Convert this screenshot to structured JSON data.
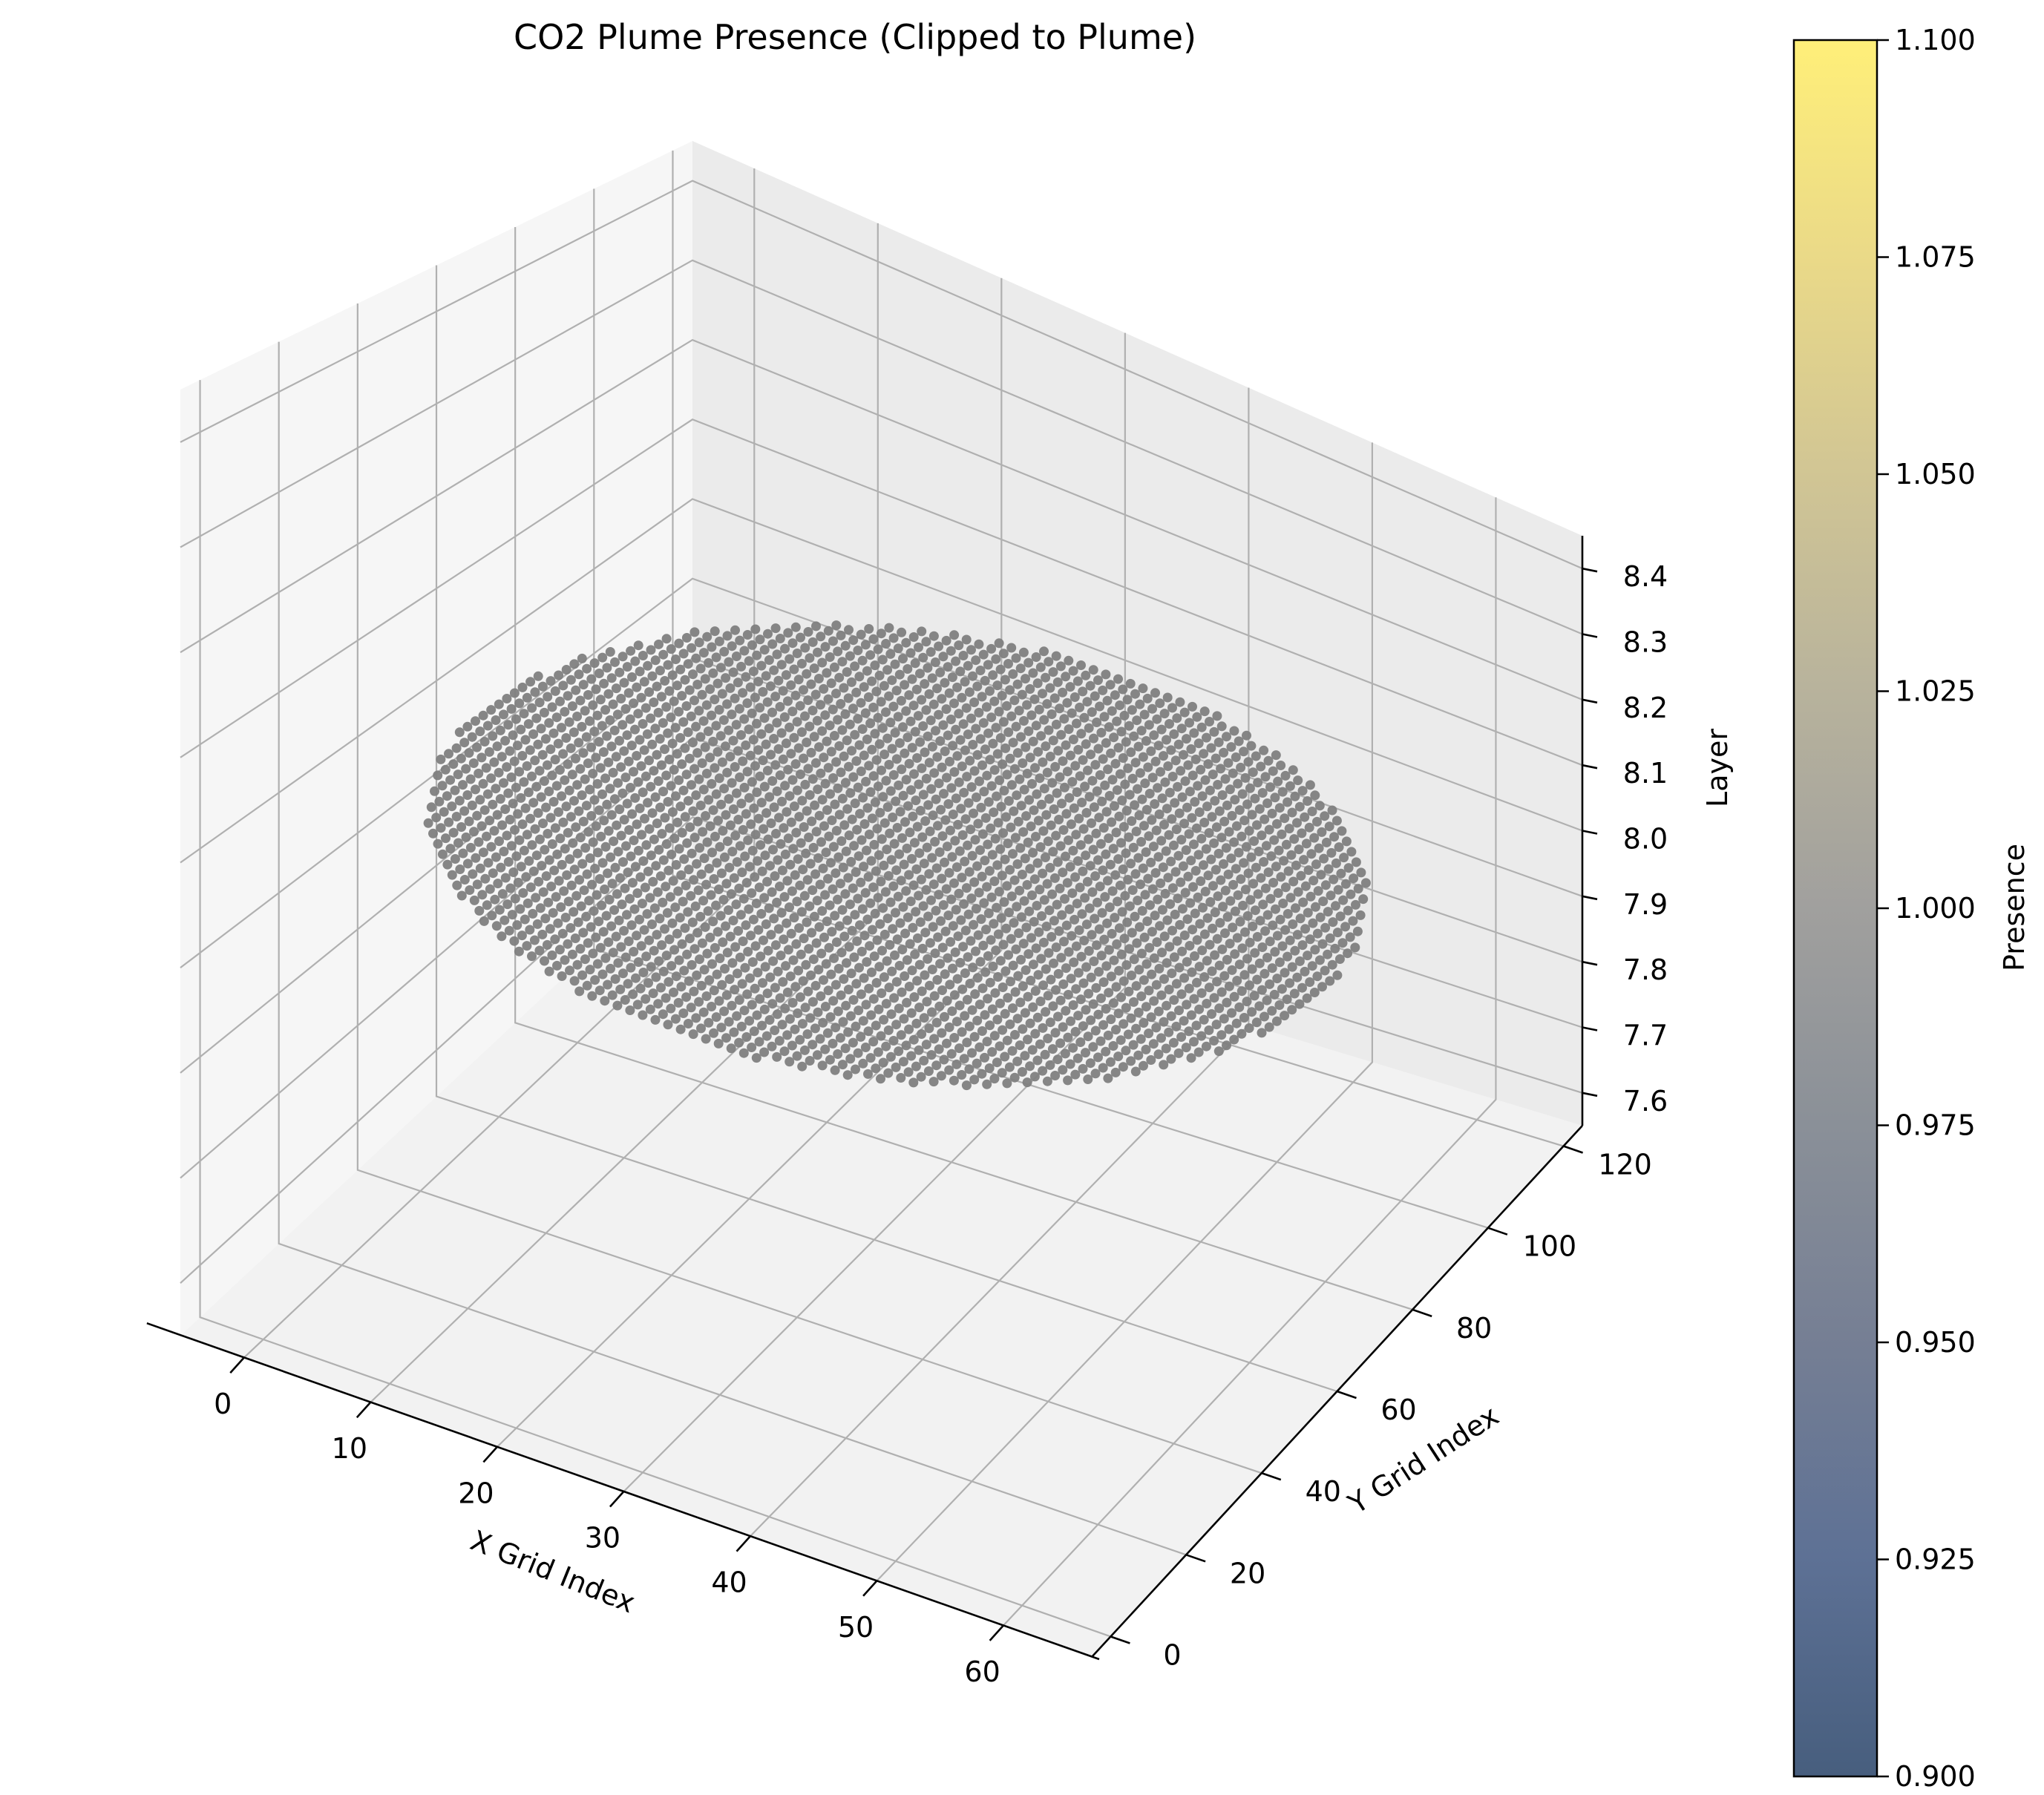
{
  "chart_data": {
    "type": "scatter",
    "title": "CO2 Plume Presence (Clipped to Plume)",
    "xlabel": "X Grid Index",
    "ylabel": "Y Grid Index",
    "zlabel": "Layer",
    "xlim": [
      -5,
      67
    ],
    "ylim": [
      -5,
      125
    ],
    "zlim": [
      7.55,
      8.45
    ],
    "x_ticks": [
      "0",
      "10",
      "20",
      "30",
      "40",
      "50",
      "60"
    ],
    "y_ticks": [
      "0",
      "20",
      "40",
      "60",
      "80",
      "100",
      "120"
    ],
    "z_ticks": [
      "7.6",
      "7.7",
      "7.8",
      "7.9",
      "8.0",
      "8.1",
      "8.2",
      "8.3",
      "8.4"
    ],
    "grid": true,
    "points": {
      "z": 8.0,
      "value": 1.0,
      "color": "#808080",
      "x_range": [
        0,
        64
      ],
      "y_range": [
        0,
        120
      ],
      "shape": "elongated ellipse, all cells present in layer 8"
    },
    "colorbar": {
      "label": "Presence",
      "range": [
        0.9,
        1.1
      ],
      "ticks": [
        "0.900",
        "0.925",
        "0.950",
        "0.975",
        "1.000",
        "1.025",
        "1.050",
        "1.075",
        "1.100"
      ],
      "colormap": "cividis",
      "alpha": 0.75
    }
  }
}
